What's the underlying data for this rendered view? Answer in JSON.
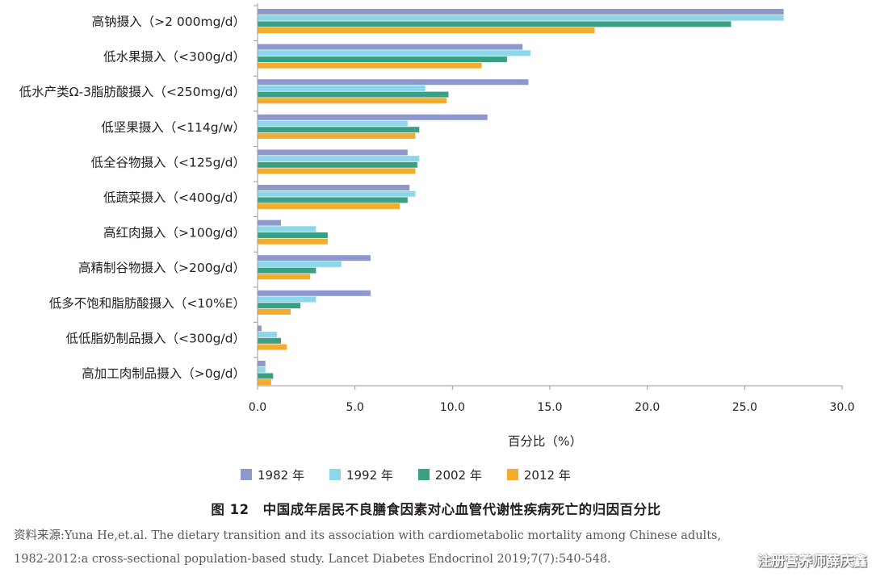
{
  "chart_data": {
    "type": "bar",
    "orientation": "horizontal",
    "categories": [
      "高钠摄入（>2 000mg/d）",
      "低水果摄入（<300g/d）",
      "低水产类Ω-3脂肪酸摄入（<250mg/d）",
      "低坚果摄入（<114g/w）",
      "低全谷物摄入（<125g/d）",
      "低蔬菜摄入（<400g/d）",
      "高红肉摄入（>100g/d）",
      "高精制谷物摄入（>200g/d）",
      "低多不饱和脂肪酸摄入（<10%E）",
      "低低脂奶制品摄入（<300g/d）",
      "高加工肉制品摄入（>0g/d）"
    ],
    "series": [
      {
        "name": "1982 年",
        "color": "#8e98cc",
        "values": [
          27.0,
          13.6,
          13.9,
          11.8,
          7.7,
          7.8,
          1.2,
          5.8,
          5.8,
          0.2,
          0.4
        ]
      },
      {
        "name": "1992 年",
        "color": "#8dd7ea",
        "values": [
          27.0,
          14.0,
          8.6,
          7.7,
          8.3,
          8.1,
          3.0,
          4.3,
          3.0,
          1.0,
          0.4
        ]
      },
      {
        "name": "2002 年",
        "color": "#3b9f86",
        "values": [
          24.3,
          12.8,
          9.8,
          8.3,
          8.2,
          7.7,
          3.6,
          3.0,
          2.2,
          1.2,
          0.8
        ]
      },
      {
        "name": "2012 年",
        "color": "#f3ac2e",
        "values": [
          17.3,
          11.5,
          9.7,
          8.1,
          8.1,
          7.3,
          3.6,
          2.7,
          1.7,
          1.5,
          0.7
        ]
      }
    ],
    "xlim": [
      0,
      30
    ],
    "xticks": [
      "0.0",
      "5.0",
      "10.0",
      "15.0",
      "20.0",
      "25.0",
      "30.0"
    ],
    "xlabel": "百分比（%）",
    "title": "图 12　中国成年居民不良膳食因素对心血管代谢性疾病死亡的归因百分比",
    "legend_position": "bottom"
  },
  "source": {
    "line1": "资料来源:Yuna He,et.al. The dietary transition and its association with cardiometabolic mortality among Chinese adults,",
    "line2": "1982-2012:a cross-sectional population-based study. Lancet Diabetes Endocrinol 2019;7(7):540-548."
  },
  "watermark": "注册营养师薛庆鑫",
  "colors": {
    "axis": "#9a9a9a",
    "text": "#231f20"
  }
}
